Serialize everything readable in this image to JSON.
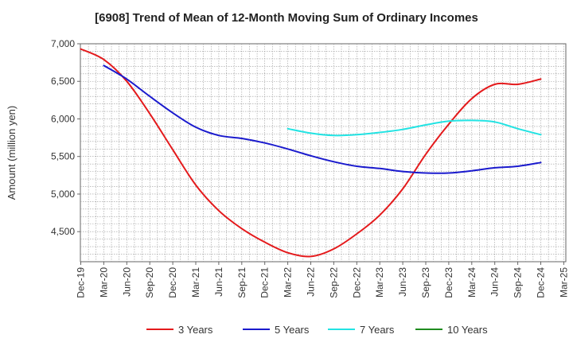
{
  "chart_data": {
    "type": "line",
    "title": "[6908]  Trend of Mean of 12-Month Moving Sum of Ordinary Incomes",
    "xlabel": "",
    "ylabel": "Amount (million yen)",
    "ylim": [
      4100,
      7000
    ],
    "yticks": [
      4500,
      5000,
      5500,
      6000,
      6500,
      7000
    ],
    "ytick_labels": [
      "4,500",
      "5,000",
      "5,500",
      "6,000",
      "6,500",
      "7,000"
    ],
    "x_categories": [
      "Dec-19",
      "Mar-20",
      "Jun-20",
      "Sep-20",
      "Dec-20",
      "Mar-21",
      "Jun-21",
      "Sep-21",
      "Dec-21",
      "Mar-22",
      "Jun-22",
      "Sep-22",
      "Dec-22",
      "Mar-23",
      "Jun-23",
      "Sep-23",
      "Dec-23",
      "Mar-24",
      "Jun-24",
      "Sep-24",
      "Dec-24",
      "Mar-25"
    ],
    "grid": true,
    "legend_position": "bottom",
    "series": [
      {
        "name": "3 Years",
        "color": "#e41a1c",
        "x": [
          0,
          1,
          2,
          3,
          4,
          5,
          6,
          7,
          8,
          9,
          10,
          11,
          12,
          13,
          14,
          15,
          16,
          17,
          18,
          19,
          20
        ],
        "values": [
          6930,
          6790,
          6500,
          6070,
          5590,
          5120,
          4780,
          4540,
          4360,
          4220,
          4170,
          4270,
          4470,
          4720,
          5070,
          5530,
          5930,
          6270,
          6460,
          6460,
          6530
        ]
      },
      {
        "name": "5 Years",
        "color": "#1a1acd",
        "x": [
          1,
          2,
          3,
          4,
          5,
          6,
          7,
          8,
          9,
          10,
          11,
          12,
          13,
          14,
          15,
          16,
          17,
          18,
          19,
          20
        ],
        "values": [
          6710,
          6530,
          6300,
          6080,
          5890,
          5780,
          5740,
          5680,
          5600,
          5510,
          5430,
          5370,
          5340,
          5300,
          5280,
          5280,
          5310,
          5350,
          5370,
          5420
        ]
      },
      {
        "name": "7 Years",
        "color": "#22e3e3",
        "x": [
          9,
          10,
          11,
          12,
          13,
          14,
          15,
          16,
          17,
          18,
          19,
          20
        ],
        "values": [
          5870,
          5810,
          5780,
          5790,
          5820,
          5860,
          5920,
          5970,
          5980,
          5960,
          5870,
          5790
        ]
      },
      {
        "name": "10 Years",
        "color": "#1f8c1f",
        "x": [],
        "values": []
      }
    ]
  }
}
